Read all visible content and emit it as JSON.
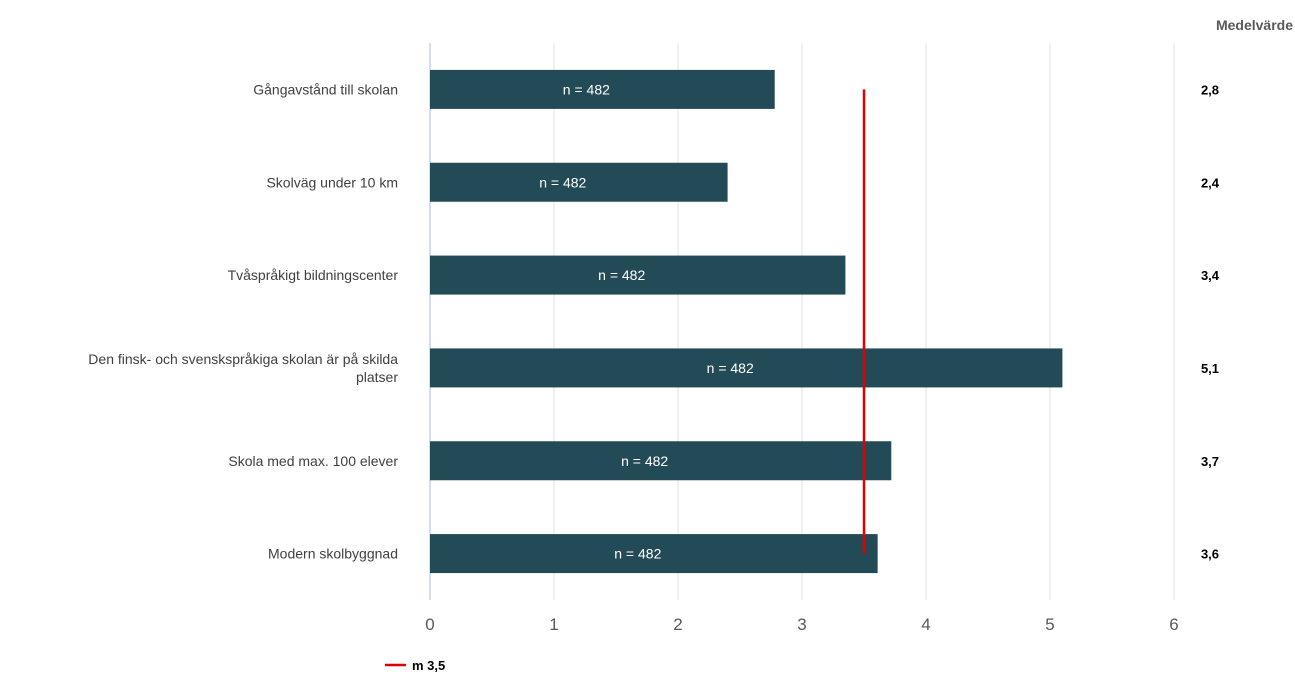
{
  "chart_data": {
    "type": "bar",
    "orientation": "horizontal",
    "categories": [
      "Gångavstånd till skolan",
      "Skolväg under 10 km",
      "Tvåspråkigt bildningscenter",
      [
        "Den finsk- och svenskspråkiga skolan är på skilda",
        "platser"
      ],
      "Skola med max. 100 elever",
      "Modern skolbyggnad"
    ],
    "values": [
      2.78,
      2.4,
      3.35,
      5.1,
      3.72,
      3.61
    ],
    "bar_labels": [
      "n = 482",
      "n = 482",
      "n = 482",
      "n = 482",
      "n = 482",
      "n = 482"
    ],
    "mean_header": "Medelvärde",
    "mean_values": [
      "2,8",
      "2,4",
      "3,4",
      "5,1",
      "3,7",
      "3,6"
    ],
    "xlim": [
      0,
      6
    ],
    "xticks": [
      0,
      1,
      2,
      3,
      4,
      5,
      6
    ],
    "grid": true,
    "bar_color": "#234B57",
    "reference_line": {
      "value": 3.5,
      "label": "m 3,5",
      "color": "#E00000"
    },
    "legend_position": "bottom-left"
  }
}
